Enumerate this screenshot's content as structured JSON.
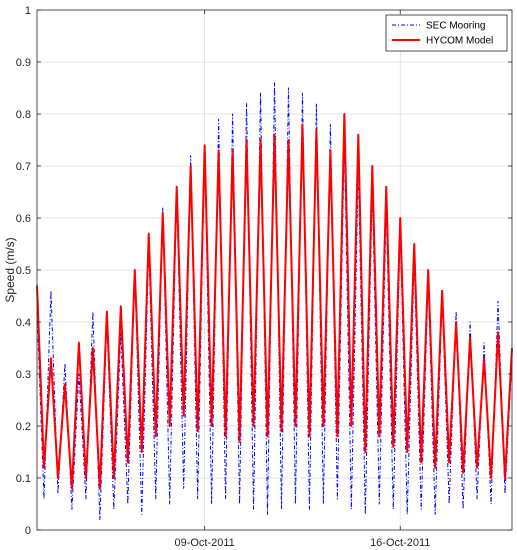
{
  "chart_data": {
    "type": "line",
    "title": "",
    "xlabel": "",
    "ylabel": "Speed (m/s)",
    "x_range": [
      "2011-10-03",
      "2011-10-20"
    ],
    "ylim": [
      0,
      1
    ],
    "grid": true,
    "legend_position": "top-right",
    "x_ticks": [
      "09-Oct-2011",
      "16-Oct-2011"
    ],
    "y_ticks": [
      "0",
      "0.1",
      "0.2",
      "0.3",
      "0.4",
      "0.5",
      "0.6",
      "0.7",
      "0.8",
      "0.9",
      "1"
    ],
    "series": [
      {
        "name": "SEC Mooring",
        "color": "#0000FF",
        "style": "dash-dot",
        "x": [
          "2011-10-03 00:00",
          "2011-10-03 06:00",
          "2011-10-03 12:00",
          "2011-10-03 18:00",
          "2011-10-04 00:00",
          "2011-10-04 06:00",
          "2011-10-04 12:00",
          "2011-10-04 18:00",
          "2011-10-05 00:00",
          "2011-10-05 06:00",
          "2011-10-05 12:00",
          "2011-10-05 18:00",
          "2011-10-06 00:00",
          "2011-10-06 06:00",
          "2011-10-06 12:00",
          "2011-10-06 18:00",
          "2011-10-07 00:00",
          "2011-10-07 06:00",
          "2011-10-07 12:00",
          "2011-10-07 18:00",
          "2011-10-08 00:00",
          "2011-10-08 06:00",
          "2011-10-08 12:00",
          "2011-10-08 18:00",
          "2011-10-09 00:00",
          "2011-10-09 06:00",
          "2011-10-09 12:00",
          "2011-10-09 18:00",
          "2011-10-10 00:00",
          "2011-10-10 06:00",
          "2011-10-10 12:00",
          "2011-10-10 18:00",
          "2011-10-11 00:00",
          "2011-10-11 06:00",
          "2011-10-11 12:00",
          "2011-10-11 18:00",
          "2011-10-12 00:00",
          "2011-10-12 06:00",
          "2011-10-12 12:00",
          "2011-10-12 18:00",
          "2011-10-13 00:00",
          "2011-10-13 06:00",
          "2011-10-13 12:00",
          "2011-10-13 18:00",
          "2011-10-14 00:00",
          "2011-10-14 06:00",
          "2011-10-14 12:00",
          "2011-10-14 18:00",
          "2011-10-15 00:00",
          "2011-10-15 06:00",
          "2011-10-15 12:00",
          "2011-10-15 18:00",
          "2011-10-16 00:00",
          "2011-10-16 06:00",
          "2011-10-16 12:00",
          "2011-10-16 18:00",
          "2011-10-17 00:00",
          "2011-10-17 06:00",
          "2011-10-17 12:00",
          "2011-10-17 18:00",
          "2011-10-18 00:00",
          "2011-10-18 06:00",
          "2011-10-18 12:00",
          "2011-10-18 18:00",
          "2011-10-19 00:00",
          "2011-10-19 06:00",
          "2011-10-19 12:00",
          "2011-10-19 18:00",
          "2011-10-20 00:00"
        ],
        "values": [
          0.42,
          0.06,
          0.46,
          0.07,
          0.32,
          0.04,
          0.3,
          0.06,
          0.42,
          0.02,
          0.4,
          0.04,
          0.38,
          0.05,
          0.5,
          0.03,
          0.55,
          0.06,
          0.62,
          0.05,
          0.66,
          0.08,
          0.72,
          0.06,
          0.74,
          0.05,
          0.79,
          0.06,
          0.8,
          0.05,
          0.82,
          0.04,
          0.84,
          0.03,
          0.86,
          0.04,
          0.85,
          0.05,
          0.84,
          0.04,
          0.82,
          0.05,
          0.78,
          0.06,
          0.75,
          0.04,
          0.7,
          0.03,
          0.66,
          0.05,
          0.62,
          0.04,
          0.58,
          0.03,
          0.52,
          0.04,
          0.48,
          0.03,
          0.45,
          0.05,
          0.42,
          0.04,
          0.4,
          0.06,
          0.36,
          0.05,
          0.44,
          0.07,
          0.33
        ]
      },
      {
        "name": "HYCOM Model",
        "color": "#FF0000",
        "style": "solid",
        "x": [
          "2011-10-03 00:00",
          "2011-10-03 06:00",
          "2011-10-03 12:00",
          "2011-10-03 18:00",
          "2011-10-04 00:00",
          "2011-10-04 06:00",
          "2011-10-04 12:00",
          "2011-10-04 18:00",
          "2011-10-05 00:00",
          "2011-10-05 06:00",
          "2011-10-05 12:00",
          "2011-10-05 18:00",
          "2011-10-06 00:00",
          "2011-10-06 06:00",
          "2011-10-06 12:00",
          "2011-10-06 18:00",
          "2011-10-07 00:00",
          "2011-10-07 06:00",
          "2011-10-07 12:00",
          "2011-10-07 18:00",
          "2011-10-08 00:00",
          "2011-10-08 06:00",
          "2011-10-08 12:00",
          "2011-10-08 18:00",
          "2011-10-09 00:00",
          "2011-10-09 06:00",
          "2011-10-09 12:00",
          "2011-10-09 18:00",
          "2011-10-10 00:00",
          "2011-10-10 06:00",
          "2011-10-10 12:00",
          "2011-10-10 18:00",
          "2011-10-11 00:00",
          "2011-10-11 06:00",
          "2011-10-11 12:00",
          "2011-10-11 18:00",
          "2011-10-12 00:00",
          "2011-10-12 06:00",
          "2011-10-12 12:00",
          "2011-10-12 18:00",
          "2011-10-13 00:00",
          "2011-10-13 06:00",
          "2011-10-13 12:00",
          "2011-10-13 18:00",
          "2011-10-14 00:00",
          "2011-10-14 06:00",
          "2011-10-14 12:00",
          "2011-10-14 18:00",
          "2011-10-15 00:00",
          "2011-10-15 06:00",
          "2011-10-15 12:00",
          "2011-10-15 18:00",
          "2011-10-16 00:00",
          "2011-10-16 06:00",
          "2011-10-16 12:00",
          "2011-10-16 18:00",
          "2011-10-17 00:00",
          "2011-10-17 06:00",
          "2011-10-17 12:00",
          "2011-10-17 18:00",
          "2011-10-18 00:00",
          "2011-10-18 06:00",
          "2011-10-18 12:00",
          "2011-10-18 18:00",
          "2011-10-19 00:00",
          "2011-10-19 06:00",
          "2011-10-19 12:00",
          "2011-10-19 18:00",
          "2011-10-20 00:00"
        ],
        "values": [
          0.47,
          0.12,
          0.33,
          0.1,
          0.28,
          0.08,
          0.36,
          0.1,
          0.35,
          0.08,
          0.42,
          0.1,
          0.43,
          0.13,
          0.5,
          0.15,
          0.57,
          0.18,
          0.61,
          0.2,
          0.66,
          0.22,
          0.7,
          0.19,
          0.74,
          0.2,
          0.73,
          0.18,
          0.73,
          0.17,
          0.75,
          0.2,
          0.75,
          0.18,
          0.76,
          0.19,
          0.75,
          0.2,
          0.78,
          0.18,
          0.77,
          0.2,
          0.73,
          0.18,
          0.8,
          0.2,
          0.76,
          0.15,
          0.7,
          0.18,
          0.66,
          0.16,
          0.6,
          0.15,
          0.55,
          0.13,
          0.5,
          0.12,
          0.46,
          0.13,
          0.4,
          0.11,
          0.37,
          0.12,
          0.33,
          0.1,
          0.38,
          0.1,
          0.35
        ]
      }
    ]
  }
}
